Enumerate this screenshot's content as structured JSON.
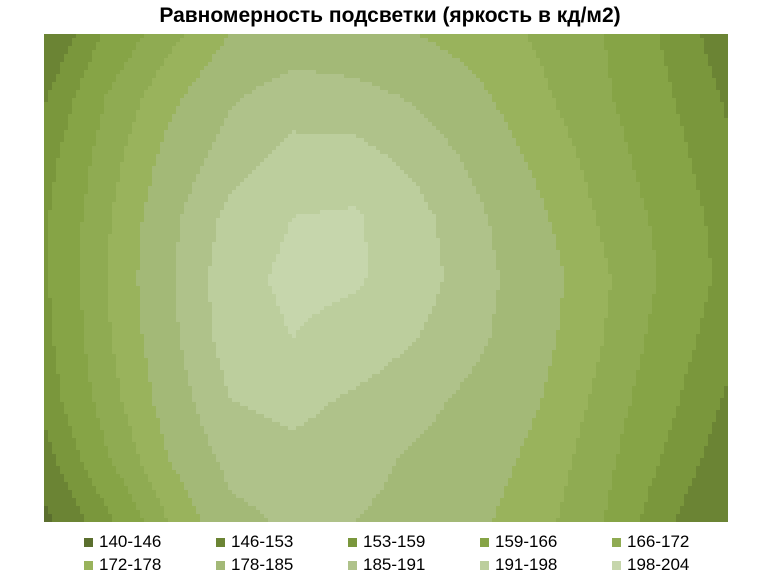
{
  "chart_data": {
    "type": "heatmap",
    "title": "Равномерность подсветки (яркость в кд/м2)",
    "xlabel": "",
    "ylabel": "",
    "legend_position": "bottom",
    "bands": [
      {
        "label": "140-146",
        "min": 140,
        "max": 146,
        "color": "#5b6f2e"
      },
      {
        "label": "146-153",
        "min": 146,
        "max": 153,
        "color": "#6b8434"
      },
      {
        "label": "153-159",
        "min": 153,
        "max": 159,
        "color": "#7a973c"
      },
      {
        "label": "159-166",
        "min": 159,
        "max": 166,
        "color": "#86a446"
      },
      {
        "label": "166-172",
        "min": 166,
        "max": 172,
        "color": "#8fab52"
      },
      {
        "label": "172-178",
        "min": 172,
        "max": 178,
        "color": "#99b35c"
      },
      {
        "label": "178-185",
        "min": 178,
        "max": 185,
        "color": "#a3b977"
      },
      {
        "label": "185-191",
        "min": 185,
        "max": 191,
        "color": "#afc28a"
      },
      {
        "label": "191-198",
        "min": 191,
        "max": 198,
        "color": "#bcce9d"
      },
      {
        "label": "198-204",
        "min": 198,
        "max": 204,
        "color": "#c6d6ac"
      }
    ],
    "grid": [
      [
        146,
        160,
        170,
        178,
        181,
        180,
        178,
        175,
        171,
        166,
        158,
        149
      ],
      [
        152,
        166,
        176,
        184,
        188,
        187,
        184,
        179,
        173,
        167,
        160,
        152
      ],
      [
        156,
        169,
        180,
        188,
        193,
        193,
        189,
        183,
        176,
        169,
        162,
        154
      ],
      [
        158,
        171,
        183,
        193,
        198,
        199,
        193,
        186,
        179,
        171,
        164,
        156
      ],
      [
        158,
        172,
        184,
        195,
        200,
        199,
        194,
        187,
        181,
        173,
        165,
        157
      ],
      [
        157,
        171,
        183,
        194,
        198,
        195,
        191,
        186,
        180,
        172,
        163,
        155
      ],
      [
        155,
        169,
        181,
        191,
        193,
        190,
        187,
        183,
        178,
        170,
        161,
        152
      ],
      [
        150,
        165,
        178,
        187,
        189,
        187,
        184,
        181,
        176,
        168,
        158,
        149
      ],
      [
        144,
        157,
        172,
        183,
        186,
        185,
        183,
        179,
        174,
        166,
        154,
        146
      ]
    ]
  }
}
